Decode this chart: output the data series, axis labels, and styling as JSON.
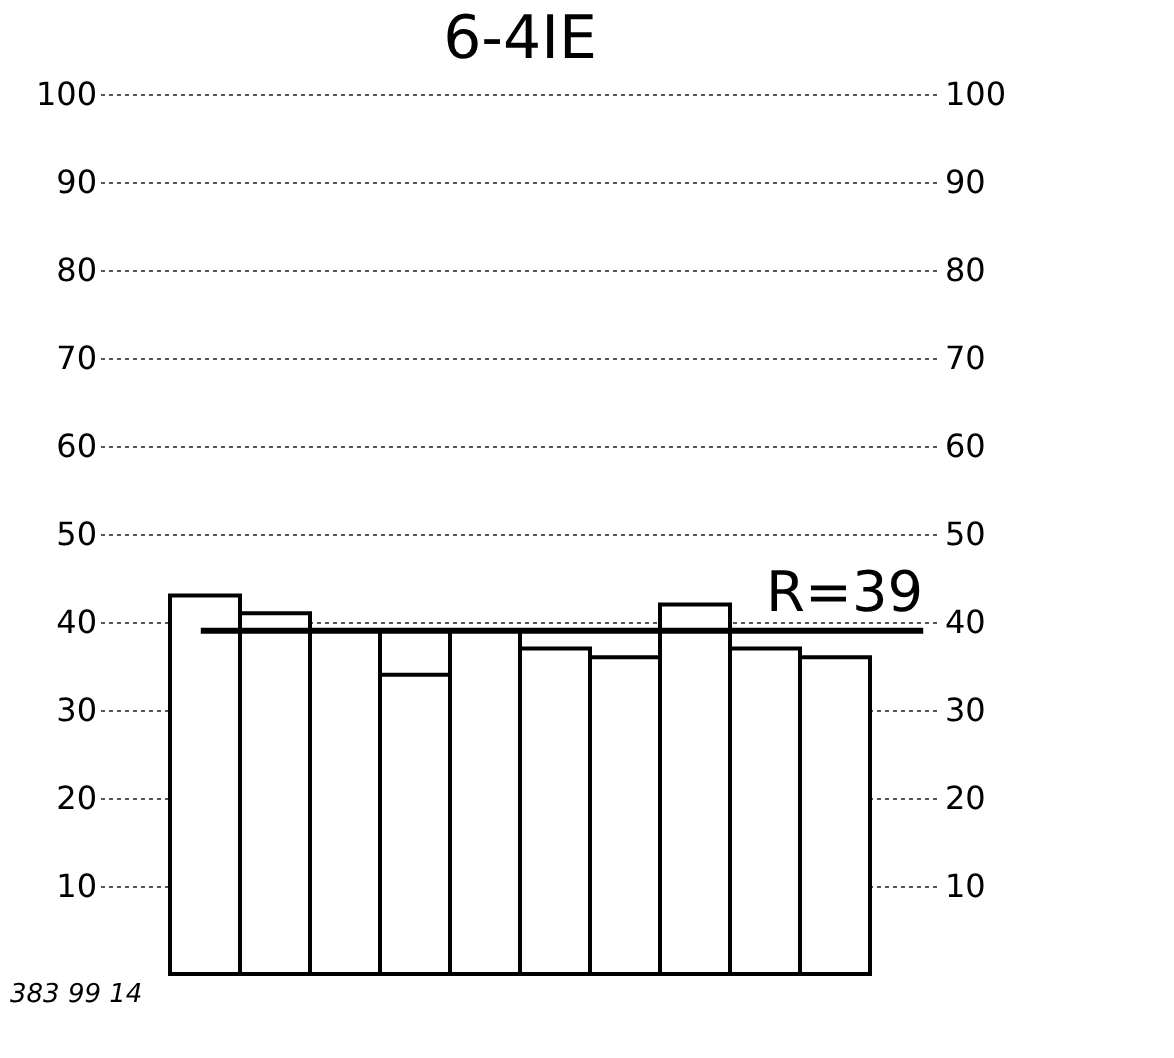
{
  "chart_data": {
    "type": "bar",
    "title": "6-4IE",
    "categories": [
      null,
      null,
      null,
      null,
      null,
      null,
      null,
      null,
      null,
      null
    ],
    "values": [
      43,
      41,
      39,
      34,
      39,
      37,
      36,
      42,
      37,
      36
    ],
    "color": "#ffffff",
    "ylim": [
      0,
      100
    ],
    "yticks": [
      10,
      20,
      30,
      40,
      50,
      60,
      70,
      80,
      90,
      100
    ],
    "y2lim": [
      0,
      100
    ],
    "y2ticks": [
      10,
      20,
      30,
      40,
      50,
      60,
      70,
      80,
      90,
      100
    ],
    "grid": "y",
    "ref_lines": [
      {
        "axis": "y",
        "value": 39,
        "label": "R=39",
        "color": "#000000"
      }
    ],
    "annotations": [
      "383 99 14"
    ]
  }
}
